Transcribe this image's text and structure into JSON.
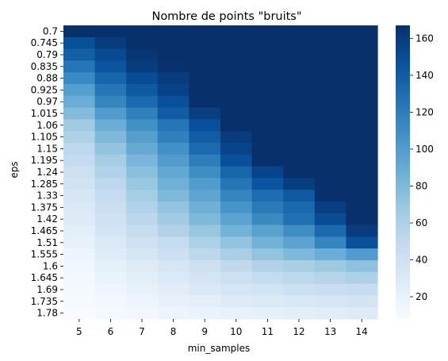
{
  "chart_data": {
    "type": "heatmap",
    "title": "Nombre de points \"bruits\"",
    "xlabel": "min_samples",
    "ylabel": "eps",
    "x_categories": [
      "5",
      "6",
      "7",
      "8",
      "9",
      "10",
      "11",
      "12",
      "13",
      "14"
    ],
    "y_categories": [
      "0.7",
      "0.745",
      "0.79",
      "0.835",
      "0.88",
      "0.925",
      "0.97",
      "1.015",
      "1.06",
      "1.105",
      "1.15",
      "1.195",
      "1.24",
      "1.285",
      "1.33",
      "1.375",
      "1.42",
      "1.465",
      "1.51",
      "1.555",
      "1.6",
      "1.645",
      "1.69",
      "1.735",
      "1.78"
    ],
    "values": [
      [
        167,
        167,
        167,
        167,
        167,
        167,
        167,
        167,
        167,
        167
      ],
      [
        148,
        160,
        167,
        167,
        167,
        167,
        167,
        167,
        167,
        167
      ],
      [
        138,
        152,
        163,
        167,
        167,
        167,
        167,
        167,
        167,
        167
      ],
      [
        125,
        145,
        160,
        166,
        167,
        167,
        167,
        167,
        167,
        167
      ],
      [
        112,
        135,
        150,
        160,
        167,
        167,
        167,
        167,
        167,
        167
      ],
      [
        98,
        125,
        142,
        156,
        167,
        167,
        167,
        167,
        167,
        167
      ],
      [
        88,
        115,
        132,
        148,
        167,
        167,
        167,
        167,
        167,
        167
      ],
      [
        78,
        100,
        118,
        140,
        158,
        167,
        167,
        167,
        167,
        167
      ],
      [
        66,
        88,
        108,
        125,
        148,
        167,
        167,
        167,
        167,
        167
      ],
      [
        60,
        80,
        98,
        118,
        140,
        160,
        167,
        167,
        167,
        167
      ],
      [
        52,
        72,
        90,
        108,
        132,
        155,
        167,
        167,
        167,
        167
      ],
      [
        48,
        64,
        82,
        100,
        120,
        148,
        167,
        167,
        167,
        167
      ],
      [
        42,
        58,
        75,
        92,
        110,
        135,
        155,
        167,
        167,
        167
      ],
      [
        38,
        52,
        70,
        86,
        100,
        125,
        145,
        158,
        167,
        167
      ],
      [
        34,
        48,
        64,
        80,
        94,
        115,
        130,
        142,
        167,
        167
      ],
      [
        30,
        44,
        58,
        72,
        86,
        105,
        122,
        132,
        158,
        167
      ],
      [
        28,
        40,
        52,
        66,
        80,
        95,
        112,
        128,
        150,
        167
      ],
      [
        24,
        36,
        46,
        58,
        70,
        84,
        96,
        110,
        132,
        160
      ],
      [
        20,
        30,
        40,
        48,
        60,
        72,
        85,
        95,
        115,
        148
      ],
      [
        16,
        26,
        34,
        42,
        52,
        62,
        72,
        80,
        88,
        100
      ],
      [
        14,
        22,
        28,
        34,
        42,
        50,
        58,
        62,
        68,
        74
      ],
      [
        12,
        18,
        24,
        30,
        36,
        42,
        48,
        52,
        56,
        60
      ],
      [
        10,
        15,
        20,
        25,
        30,
        34,
        38,
        42,
        44,
        46
      ],
      [
        9,
        12,
        16,
        20,
        24,
        28,
        30,
        32,
        34,
        36
      ],
      [
        8,
        10,
        13,
        16,
        18,
        20,
        22,
        24,
        26,
        28
      ]
    ],
    "vmin": 8,
    "vmax": 167,
    "colorbar_ticks": [
      "20",
      "40",
      "60",
      "80",
      "100",
      "120",
      "140",
      "160"
    ],
    "colormap": [
      "#f7fbff",
      "#deebf7",
      "#c6dbef",
      "#9ecae1",
      "#6baed6",
      "#4292c6",
      "#2171b5",
      "#08519c",
      "#08306b"
    ]
  }
}
